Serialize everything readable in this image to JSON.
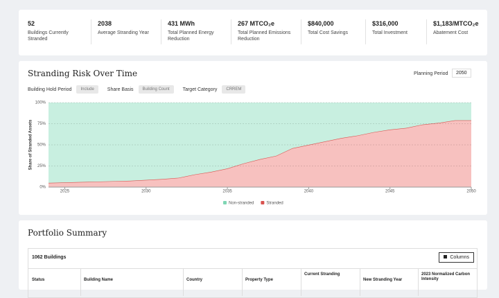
{
  "kpis": [
    {
      "value": "52",
      "label": "Buildings Currently Stranded"
    },
    {
      "value": "2038",
      "label": "Average Stranding Year"
    },
    {
      "value": "431 MWh",
      "label": "Total Planned Energy Reduction"
    },
    {
      "value": "267 MTCO₂e",
      "label": "Total Planned Emissions Reduction"
    },
    {
      "value": "$840,000",
      "label": "Total Cost Savings"
    },
    {
      "value": "$316,000",
      "label": "Total Investment"
    },
    {
      "value": "$1,183/MTCO₂e",
      "label": "Abatement Cost"
    }
  ],
  "chart_section": {
    "title": "Stranding Risk Over Time",
    "planning_period_label": "Planning Period",
    "planning_period": "2050",
    "filters": [
      {
        "label": "Building Hold Period",
        "value": "Include"
      },
      {
        "label": "Share Basis",
        "value": "Building Count"
      },
      {
        "label": "Target Category",
        "value": "CRREM"
      }
    ]
  },
  "chart_data": {
    "type": "area",
    "stacked": true,
    "ylabel": "Share of Stranded Assets",
    "x": [
      2024,
      2025,
      2026,
      2027,
      2028,
      2029,
      2030,
      2031,
      2032,
      2033,
      2034,
      2035,
      2036,
      2037,
      2038,
      2039,
      2040,
      2041,
      2042,
      2043,
      2044,
      2045,
      2046,
      2047,
      2048,
      2049,
      2050
    ],
    "series": [
      {
        "name": "Stranded",
        "color": "#f7c1bf",
        "line_color": "#d9534f",
        "values": [
          5,
          5.5,
          6,
          6.5,
          7,
          7.5,
          8.5,
          9.5,
          11,
          15,
          18,
          22,
          28,
          33,
          37,
          46,
          50,
          54,
          58,
          61,
          65,
          68,
          70,
          74,
          76,
          79,
          79
        ]
      },
      {
        "name": "Non-stranded",
        "color": "#c8efe0",
        "values": [
          95,
          94.5,
          94,
          93.5,
          93,
          92.5,
          91.5,
          90.5,
          89,
          85,
          82,
          78,
          72,
          67,
          63,
          54,
          50,
          46,
          42,
          39,
          35,
          32,
          30,
          26,
          24,
          21,
          21
        ]
      }
    ],
    "xlim": [
      2024,
      2050
    ],
    "xticks": [
      2025,
      2030,
      2035,
      2040,
      2045,
      2050
    ],
    "ylim": [
      0,
      100
    ],
    "yticks": [
      {
        "value": 0,
        "label": "0%"
      },
      {
        "value": 25,
        "label": "25%"
      },
      {
        "value": 50,
        "label": "50%"
      },
      {
        "value": 75,
        "label": "75%"
      },
      {
        "value": 100,
        "label": "100%"
      }
    ],
    "grid": true,
    "legend": "bottom"
  },
  "portfolio": {
    "title": "Portfolio Summary",
    "count": "1062 Buildings",
    "columns_button": "Columns",
    "columns": [
      "Status",
      "Building Name",
      "Country",
      "Property Type",
      "Current Stranding",
      "New Stranding Year",
      "2023 Normalized Carbon Intensity"
    ]
  }
}
